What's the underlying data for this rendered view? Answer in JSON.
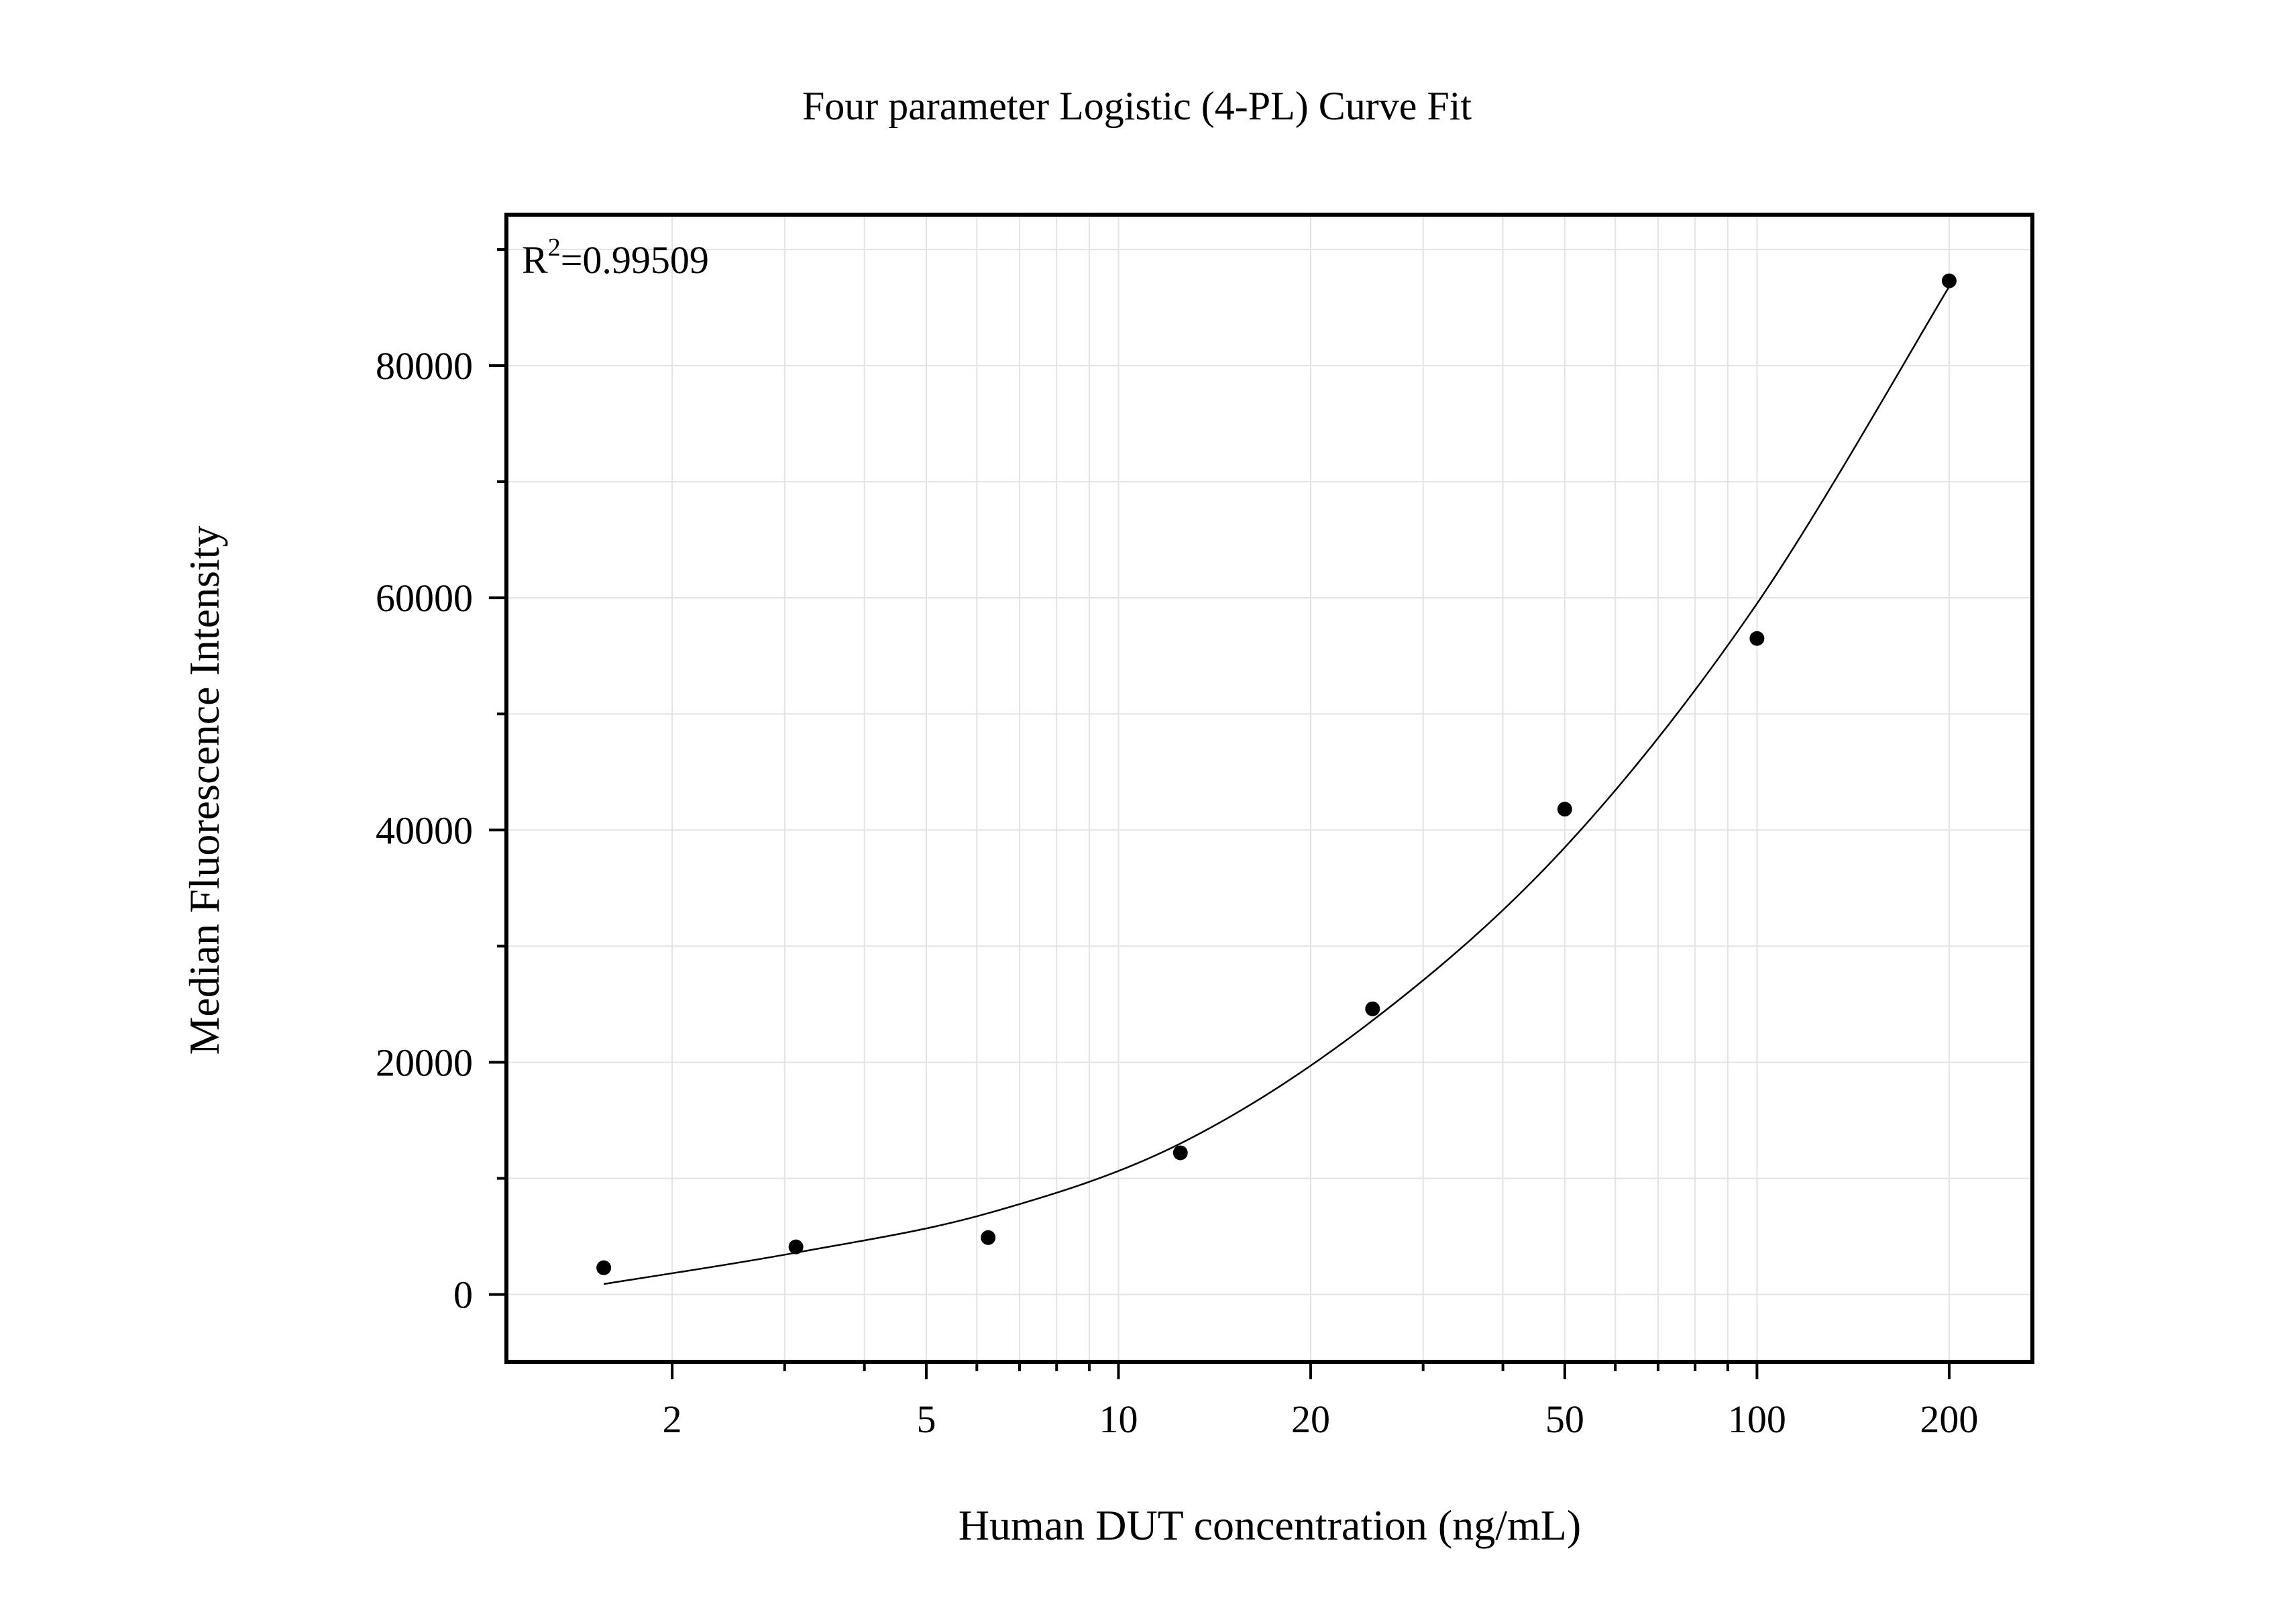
{
  "chart_data": {
    "type": "scatter",
    "title": "Four parameter Logistic (4-PL) Curve Fit",
    "xlabel": "Human DUT concentration (ng/mL)",
    "ylabel": "Median Fluorescence Intensity",
    "x_scale": "log",
    "xlim": [
      1.1,
      270
    ],
    "ylim": [
      -5800,
      93000
    ],
    "x_ticks": [
      2,
      5,
      10,
      20,
      50,
      100,
      200
    ],
    "x_tick_labels": [
      "2",
      "5",
      "10",
      "20",
      "50",
      "100",
      "200"
    ],
    "y_ticks": [
      0,
      20000,
      40000,
      60000,
      80000
    ],
    "y_tick_labels": [
      "0",
      "20000",
      "40000",
      "60000",
      "80000"
    ],
    "grid": true,
    "annotation": {
      "base": "R",
      "sup": "2",
      "rest": "=0.99509"
    },
    "points": {
      "x": [
        1.5625,
        3.125,
        6.25,
        12.5,
        25,
        50,
        100,
        200
      ],
      "y": [
        2300,
        4100,
        4900,
        12200,
        24600,
        41800,
        56500,
        87300
      ]
    },
    "fit_curve": {
      "x": [
        1.5625,
        3.125,
        6.25,
        12.5,
        25,
        50,
        100,
        200
      ],
      "y": [
        900,
        3600,
        7000,
        13000,
        23600,
        38500,
        59500,
        86800
      ]
    },
    "colors": {
      "points": "#000000",
      "curve": "#000000",
      "grid": "#e3e3e3",
      "frame": "#000000"
    }
  }
}
